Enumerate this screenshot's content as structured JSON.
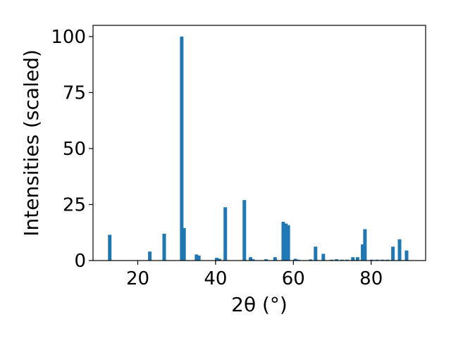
{
  "chart_data": {
    "type": "bar",
    "xlabel": "2θ (°)",
    "ylabel": "Intensities (scaled)",
    "xlim": [
      8.5,
      94
    ],
    "ylim": [
      0,
      105
    ],
    "x_ticks": [
      20,
      40,
      60,
      80
    ],
    "y_ticks": [
      0,
      25,
      50,
      75,
      100
    ],
    "grid": false,
    "bar_color": "#1f77b4",
    "x": [
      12.8,
      23.1,
      26.8,
      31.3,
      31.9,
      35.1,
      35.7,
      40.3,
      41.0,
      42.5,
      47.4,
      49.0,
      49.6,
      53.0,
      55.3,
      57.4,
      58.1,
      58.7,
      60.5,
      61.2,
      64.4,
      65.7,
      67.7,
      69.8,
      71.1,
      72.5,
      73.8,
      75.3,
      76.5,
      77.8,
      78.4,
      80.2,
      81.5,
      82.9,
      84.2,
      85.6,
      87.3,
      89.1
    ],
    "values": [
      11.5,
      4.0,
      12.0,
      100.0,
      14.5,
      2.7,
      2.2,
      1.2,
      0.8,
      23.8,
      27.0,
      1.5,
      0.6,
      0.6,
      1.5,
      17.3,
      16.5,
      15.8,
      0.8,
      0.4,
      0.5,
      6.2,
      3.0,
      0.4,
      0.6,
      0.4,
      0.4,
      1.5,
      1.5,
      7.2,
      14.0,
      0.4,
      0.4,
      0.4,
      0.4,
      6.2,
      9.5,
      4.5
    ]
  }
}
